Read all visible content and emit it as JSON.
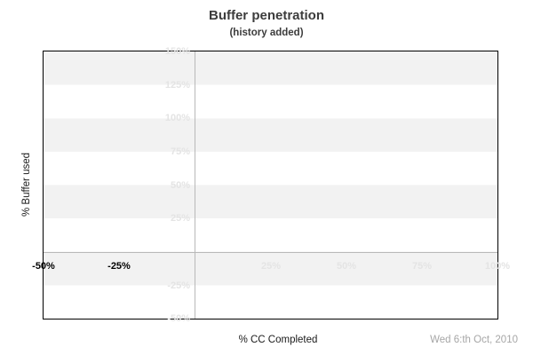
{
  "header": {
    "title": "Buffer penetration",
    "subtitle": "(history added)"
  },
  "footer": {
    "x_axis_label": "% CC Completed",
    "date_label": "Wed 6:th Oct, 2010"
  },
  "colors": {
    "background": "#ffffff",
    "band_gray": "#f2f2f2",
    "faint_tick_label": "#e4e4e4",
    "history_tick_label": "#000000",
    "zero_lines": "#b9b9b9",
    "plot_border": "#000000",
    "title_text": "#3c3c3c",
    "date_text": "#a6a6a6"
  },
  "chart_data": {
    "type": "line",
    "title": "Buffer penetration",
    "subtitle": "(history added)",
    "xlabel": "% CC Completed",
    "ylabel": "% Buffer used",
    "xlim": [
      -50,
      100
    ],
    "ylim": [
      -50,
      150
    ],
    "x_ticks": [
      -50,
      -25,
      25,
      50,
      75,
      100
    ],
    "x_tick_labels": [
      "-50%",
      "-25%",
      "25%",
      "50%",
      "75%",
      "100%"
    ],
    "y_ticks": [
      150,
      125,
      100,
      75,
      50,
      25,
      -25,
      -50
    ],
    "y_tick_labels": [
      "150%",
      "125%",
      "100%",
      "75%",
      "50%",
      "25%",
      "-25%",
      "-50%"
    ],
    "series": [],
    "notes": {
      "plot_is_empty": true,
      "grid": "alternating horizontal gray/white bands every 25% starting gray at 150%",
      "zero_axis_lines": "gray vertical line at x=0 and gray horizontal line at y=0",
      "history_region": "negative x tick labels (-50%, -25%) drawn in black; positive ticks very faint gray",
      "legend": "none",
      "annotation_bottom_right": "Wed 6:th Oct, 2010"
    }
  }
}
